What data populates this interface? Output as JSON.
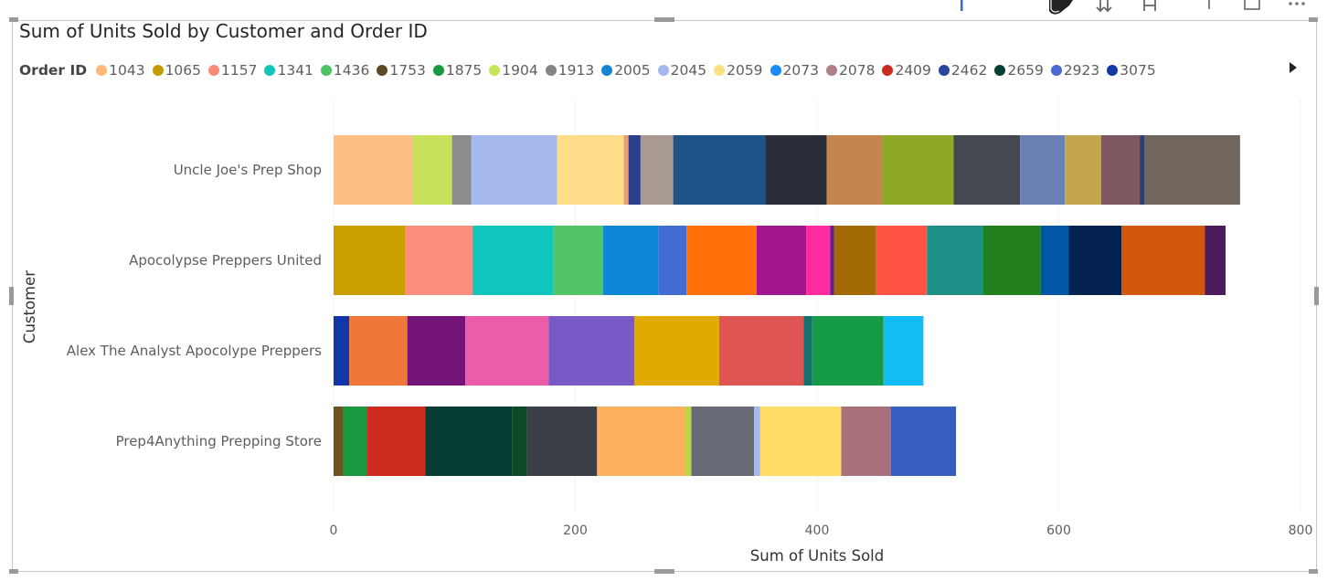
{
  "chart_data": {
    "type": "bar",
    "orientation": "horizontal",
    "stacked": true,
    "title": "Sum of Units Sold by Customer and Order ID",
    "xlabel": "Sum of Units Sold",
    "ylabel": "Customer",
    "xlim": [
      0,
      800
    ],
    "x_ticks": [
      "0",
      "200",
      "400",
      "600",
      "800"
    ],
    "grid": "vertical dotted",
    "legend_title": "Order ID",
    "legend_placement": "top",
    "legend": [
      {
        "label": "1043",
        "color": "#FFB876"
      },
      {
        "label": "1065",
        "color": "#C59C00"
      },
      {
        "label": "1157",
        "color": "#FA8A78"
      },
      {
        "label": "1341",
        "color": "#12C5BB"
      },
      {
        "label": "1436",
        "color": "#4FC261"
      },
      {
        "label": "1753",
        "color": "#5C4A22"
      },
      {
        "label": "1875",
        "color": "#1A9A40"
      },
      {
        "label": "1904",
        "color": "#C7E55A"
      },
      {
        "label": "1913",
        "color": "#858585"
      },
      {
        "label": "2005",
        "color": "#1985D1"
      },
      {
        "label": "2045",
        "color": "#A3B8F0"
      },
      {
        "label": "2059",
        "color": "#FFE080"
      },
      {
        "label": "2073",
        "color": "#1C8BF5"
      },
      {
        "label": "2078",
        "color": "#B08088"
      },
      {
        "label": "2409",
        "color": "#CC2B20"
      },
      {
        "label": "2462",
        "color": "#29449A"
      },
      {
        "label": "2659",
        "color": "#073D34"
      },
      {
        "label": "2923",
        "color": "#4E68D0"
      },
      {
        "label": "3075",
        "color": "#1437A8"
      }
    ],
    "categories": [
      "Uncle Joe's Prep Shop",
      "Apocolypse Preppers United",
      "Alex The Analyst Apocolype Preppers",
      "Prep4Anything Prepping Store"
    ],
    "bars": [
      [
        {
          "value": 65,
          "color": "#FFBE84"
        },
        {
          "value": 33,
          "color": "#C8E15C"
        },
        {
          "value": 16,
          "color": "#8C8C8C"
        },
        {
          "value": 71,
          "color": "#A5B9EE"
        },
        {
          "value": 55,
          "color": "#FFDD88"
        },
        {
          "value": 4,
          "color": "#E9A070"
        },
        {
          "value": 10,
          "color": "#2D3E8A"
        },
        {
          "value": 27,
          "color": "#A89A90"
        },
        {
          "value": 76,
          "color": "#1D5387"
        },
        {
          "value": 51,
          "color": "#2A2E3A"
        },
        {
          "value": 46,
          "color": "#C4864E"
        },
        {
          "value": 59,
          "color": "#8EA828"
        },
        {
          "value": 55,
          "color": "#444851"
        },
        {
          "value": 37,
          "color": "#6A80B2"
        },
        {
          "value": 30,
          "color": "#C4A64E"
        },
        {
          "value": 32,
          "color": "#7E5860"
        },
        {
          "value": 4,
          "color": "#2B3E78"
        },
        {
          "value": 79,
          "color": "#70665E"
        }
      ],
      [
        {
          "value": 59,
          "color": "#C9A000"
        },
        {
          "value": 56,
          "color": "#FC8C7B"
        },
        {
          "value": 67,
          "color": "#10C6BC"
        },
        {
          "value": 41,
          "color": "#51C566"
        },
        {
          "value": 46,
          "color": "#0C86D6"
        },
        {
          "value": 23,
          "color": "#436CD2"
        },
        {
          "value": 58,
          "color": "#FF7009"
        },
        {
          "value": 41,
          "color": "#A2178F"
        },
        {
          "value": 20,
          "color": "#FC2BA0"
        },
        {
          "value": 3,
          "color": "#54258A"
        },
        {
          "value": 35,
          "color": "#A36A06"
        },
        {
          "value": 42,
          "color": "#FF5343"
        },
        {
          "value": 46,
          "color": "#1C9087"
        },
        {
          "value": 48,
          "color": "#217F1D"
        },
        {
          "value": 23,
          "color": "#0057A4"
        },
        {
          "value": 44,
          "color": "#03224F"
        },
        {
          "value": 69,
          "color": "#D3580C"
        },
        {
          "value": 17,
          "color": "#4A1C5B"
        }
      ],
      [
        {
          "value": 13,
          "color": "#1437A8"
        },
        {
          "value": 48,
          "color": "#F0763A"
        },
        {
          "value": 48,
          "color": "#751478"
        },
        {
          "value": 69,
          "color": "#EC5CA8"
        },
        {
          "value": 71,
          "color": "#775AC6"
        },
        {
          "value": 70,
          "color": "#E0AA00"
        },
        {
          "value": 70,
          "color": "#DF5553"
        },
        {
          "value": 7,
          "color": "#157070"
        },
        {
          "value": 59,
          "color": "#159B45"
        },
        {
          "value": 33,
          "color": "#12BDF5"
        }
      ],
      [
        {
          "value": 8,
          "color": "#6B5420"
        },
        {
          "value": 20,
          "color": "#1A9A40"
        },
        {
          "value": 48,
          "color": "#CC2B20"
        },
        {
          "value": 72,
          "color": "#073D34"
        },
        {
          "value": 12,
          "color": "#0A4A24"
        },
        {
          "value": 58,
          "color": "#3B3F48"
        },
        {
          "value": 73,
          "color": "#FFB05C"
        },
        {
          "value": 5,
          "color": "#BAD642"
        },
        {
          "value": 52,
          "color": "#666B75"
        },
        {
          "value": 5,
          "color": "#A3B8F0"
        },
        {
          "value": 67,
          "color": "#FFDD66"
        },
        {
          "value": 41,
          "color": "#A8717B"
        },
        {
          "value": 54,
          "color": "#365DC0"
        }
      ]
    ]
  }
}
